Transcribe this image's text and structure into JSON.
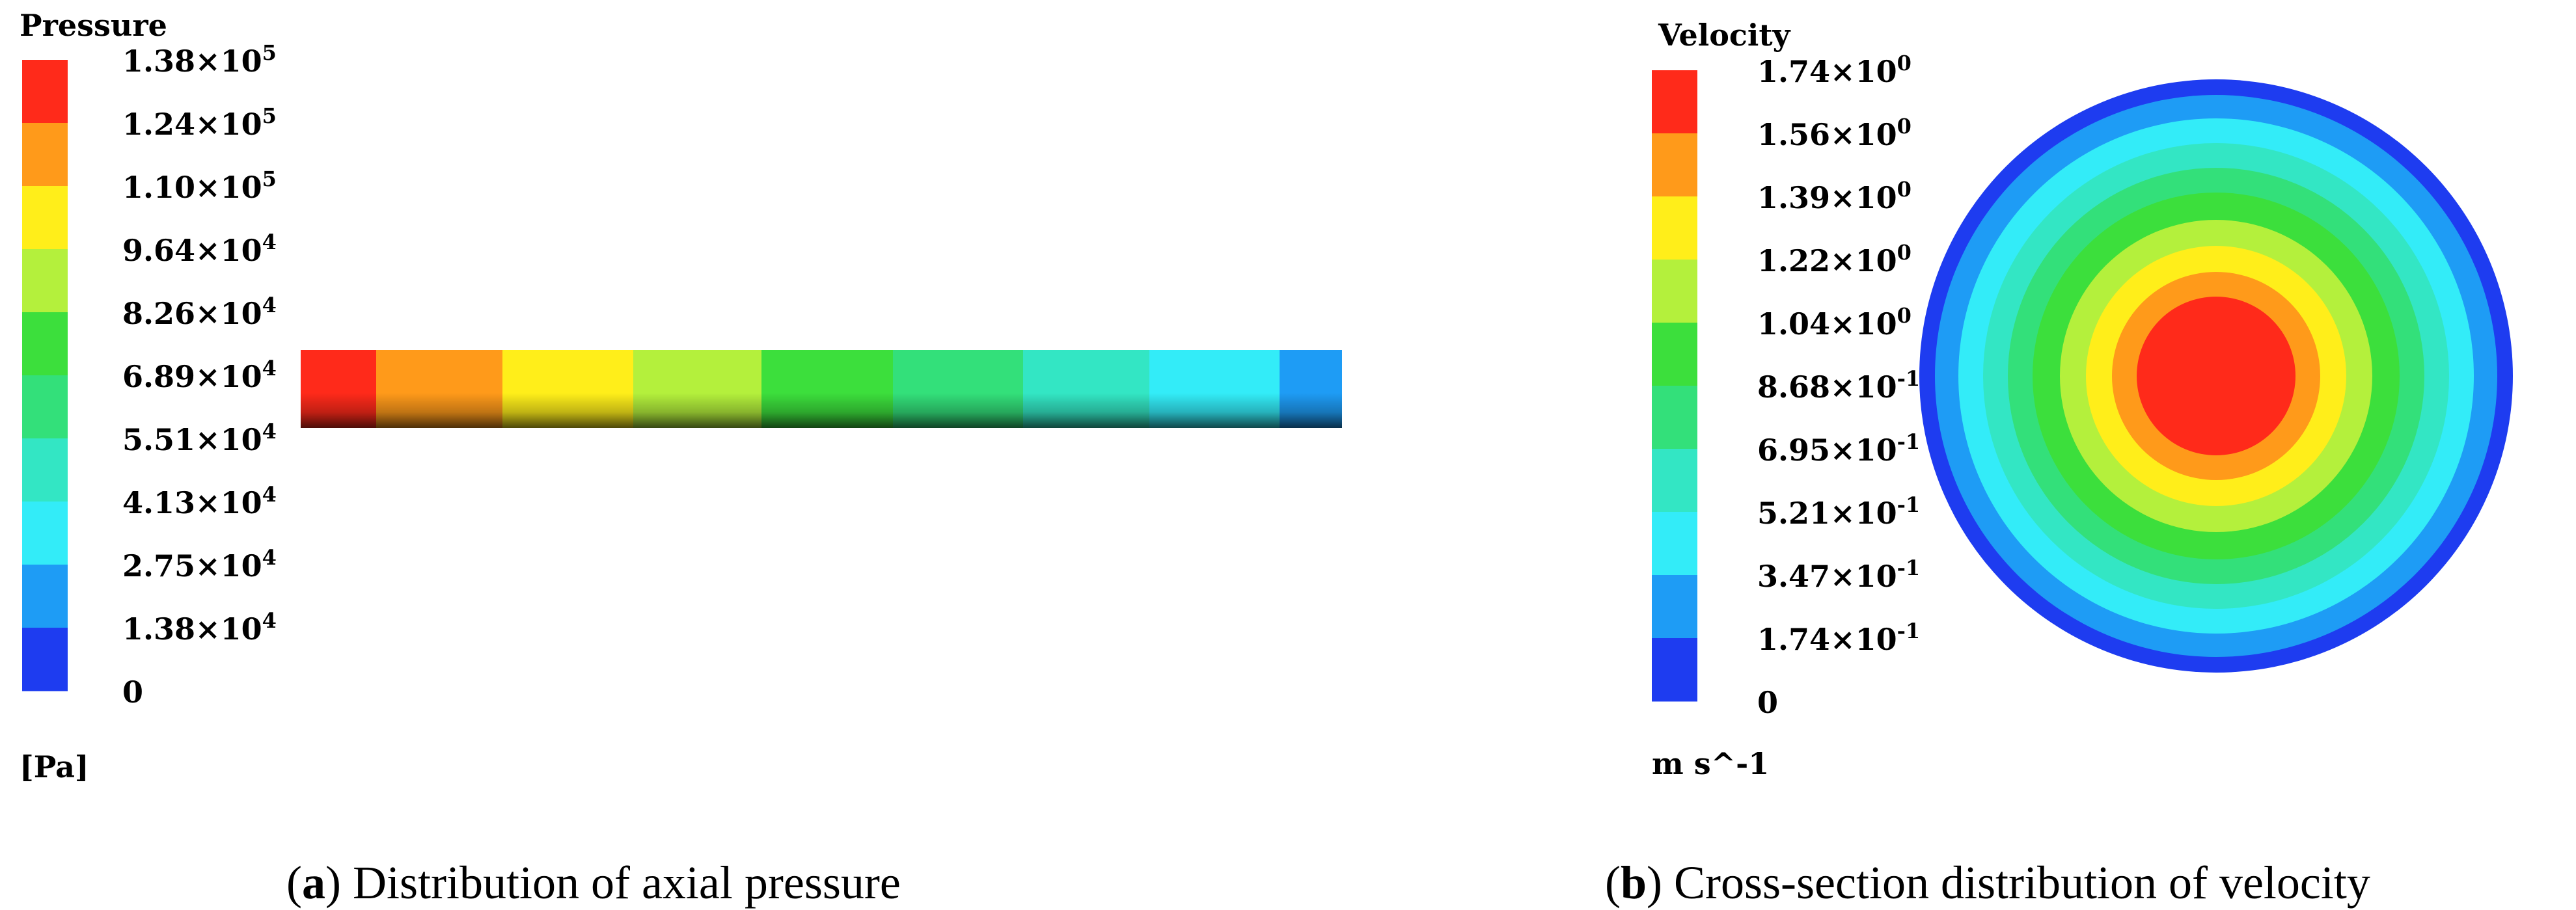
{
  "chart_data": [
    {
      "type": "heatmap",
      "panel_id": "a",
      "colorbar": {
        "title": "Pressure",
        "unit": "[Pa]",
        "tick_labels": [
          {
            "m": "1.38",
            "e": "5"
          },
          {
            "m": "1.24",
            "e": "5"
          },
          {
            "m": "1.10",
            "e": "5"
          },
          {
            "m": "9.64",
            "e": "4"
          },
          {
            "m": "8.26",
            "e": "4"
          },
          {
            "m": "6.89",
            "e": "4"
          },
          {
            "m": "5.51",
            "e": "4"
          },
          {
            "m": "4.13",
            "e": "4"
          },
          {
            "m": "2.75",
            "e": "4"
          },
          {
            "m": "1.38",
            "e": "4"
          },
          {
            "m": "0",
            "e": ""
          }
        ],
        "colors": [
          "#ff2a1a",
          "#ff9a1a",
          "#ffee1a",
          "#b4f03c",
          "#3cdf3c",
          "#33e07a",
          "#33e6c4",
          "#33ecf8",
          "#1e9cf5",
          "#1e3cf0"
        ],
        "range": [
          0,
          138000
        ]
      },
      "pipe_segments_levels": [
        10,
        9,
        8,
        7,
        6,
        5,
        4,
        3,
        2
      ],
      "caption_letter": "a",
      "caption_text": " Distribution of axial pressure"
    },
    {
      "type": "heatmap",
      "panel_id": "b",
      "colorbar": {
        "title": "Velocity",
        "unit": "m s^-1",
        "tick_labels": [
          {
            "m": "1.74",
            "e": "0"
          },
          {
            "m": "1.56",
            "e": "0"
          },
          {
            "m": "1.39",
            "e": "0"
          },
          {
            "m": "1.22",
            "e": "0"
          },
          {
            "m": "1.04",
            "e": "0"
          },
          {
            "m": "8.68",
            "e": "-1"
          },
          {
            "m": "6.95",
            "e": "-1"
          },
          {
            "m": "5.21",
            "e": "-1"
          },
          {
            "m": "3.47",
            "e": "-1"
          },
          {
            "m": "1.74",
            "e": "-1"
          },
          {
            "m": "0",
            "e": ""
          }
        ],
        "colors": [
          "#ff2a1a",
          "#ff9a1a",
          "#ffee1a",
          "#b4f03c",
          "#3cdf3c",
          "#33e07a",
          "#33e6c4",
          "#33ecf8",
          "#1e9cf5",
          "#1e3cf0"
        ],
        "range": [
          0,
          1.74
        ]
      },
      "rings_levels_outer_to_inner": [
        1,
        2,
        3,
        4,
        5,
        6,
        7,
        8,
        9,
        10
      ],
      "caption_letter": "b",
      "caption_text": " Cross-section distribution of velocity"
    }
  ]
}
